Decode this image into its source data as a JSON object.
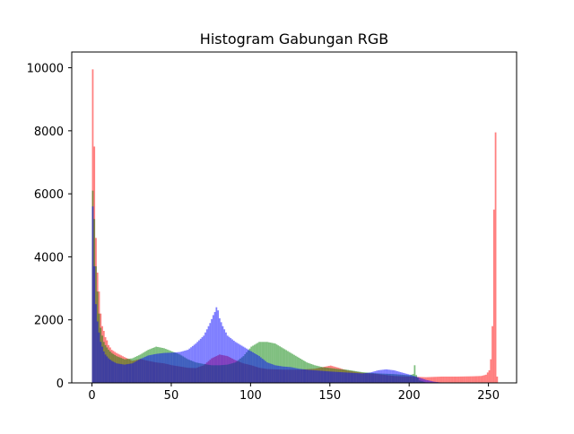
{
  "chart_data": {
    "type": "histogram",
    "title": "Histogram Gabungan RGB",
    "xlabel": "",
    "ylabel": "",
    "xlim": [
      -12.75,
      267.75
    ],
    "ylim": [
      0,
      10500
    ],
    "x_ticks": [
      0,
      50,
      100,
      150,
      200,
      250
    ],
    "y_ticks": [
      0,
      2000,
      4000,
      6000,
      8000,
      10000
    ],
    "bin_width": 1,
    "legend": "none",
    "grid": false,
    "series": [
      {
        "color": "#ff0000",
        "opacity": 0.5,
        "anchors": [
          [
            0,
            9950
          ],
          [
            1,
            7500
          ],
          [
            2,
            4600
          ],
          [
            3,
            3500
          ],
          [
            4,
            2900
          ],
          [
            5,
            2200
          ],
          [
            6,
            1800
          ],
          [
            7,
            1650
          ],
          [
            8,
            1450
          ],
          [
            9,
            1350
          ],
          [
            10,
            1200
          ],
          [
            12,
            1050
          ],
          [
            15,
            950
          ],
          [
            20,
            820
          ],
          [
            25,
            700
          ],
          [
            30,
            760
          ],
          [
            35,
            700
          ],
          [
            40,
            650
          ],
          [
            45,
            620
          ],
          [
            50,
            560
          ],
          [
            55,
            520
          ],
          [
            60,
            480
          ],
          [
            65,
            470
          ],
          [
            70,
            560
          ],
          [
            75,
            780
          ],
          [
            80,
            900
          ],
          [
            85,
            850
          ],
          [
            90,
            720
          ],
          [
            95,
            620
          ],
          [
            100,
            560
          ],
          [
            105,
            480
          ],
          [
            110,
            440
          ],
          [
            120,
            420
          ],
          [
            130,
            420
          ],
          [
            140,
            450
          ],
          [
            150,
            550
          ],
          [
            155,
            480
          ],
          [
            160,
            400
          ],
          [
            170,
            320
          ],
          [
            180,
            280
          ],
          [
            190,
            220
          ],
          [
            200,
            200
          ],
          [
            210,
            180
          ],
          [
            215,
            190
          ],
          [
            220,
            200
          ],
          [
            230,
            200
          ],
          [
            240,
            210
          ],
          [
            245,
            220
          ],
          [
            248,
            260
          ],
          [
            250,
            400
          ],
          [
            251,
            750
          ],
          [
            252,
            1800
          ],
          [
            253,
            5500
          ],
          [
            254,
            7950
          ],
          [
            255,
            200
          ]
        ]
      },
      {
        "color": "#008000",
        "opacity": 0.5,
        "anchors": [
          [
            0,
            6100
          ],
          [
            1,
            5200
          ],
          [
            2,
            3700
          ],
          [
            3,
            2900
          ],
          [
            4,
            2200
          ],
          [
            5,
            1750
          ],
          [
            6,
            1500
          ],
          [
            7,
            1300
          ],
          [
            8,
            1200
          ],
          [
            10,
            1050
          ],
          [
            12,
            950
          ],
          [
            15,
            850
          ],
          [
            20,
            750
          ],
          [
            25,
            780
          ],
          [
            30,
            900
          ],
          [
            35,
            1050
          ],
          [
            40,
            1150
          ],
          [
            45,
            1100
          ],
          [
            50,
            1000
          ],
          [
            55,
            900
          ],
          [
            60,
            750
          ],
          [
            65,
            650
          ],
          [
            70,
            600
          ],
          [
            75,
            560
          ],
          [
            80,
            560
          ],
          [
            85,
            580
          ],
          [
            90,
            650
          ],
          [
            95,
            850
          ],
          [
            100,
            1150
          ],
          [
            105,
            1300
          ],
          [
            110,
            1300
          ],
          [
            115,
            1250
          ],
          [
            120,
            1100
          ],
          [
            125,
            950
          ],
          [
            130,
            800
          ],
          [
            135,
            650
          ],
          [
            140,
            560
          ],
          [
            145,
            500
          ],
          [
            150,
            470
          ],
          [
            155,
            440
          ],
          [
            160,
            420
          ],
          [
            165,
            380
          ],
          [
            170,
            340
          ],
          [
            175,
            320
          ],
          [
            180,
            300
          ],
          [
            185,
            290
          ],
          [
            190,
            280
          ],
          [
            195,
            260
          ],
          [
            200,
            240
          ],
          [
            202,
            280
          ],
          [
            203,
            560
          ],
          [
            204,
            250
          ],
          [
            206,
            80
          ],
          [
            210,
            20
          ],
          [
            215,
            5
          ],
          [
            220,
            0
          ],
          [
            255,
            0
          ]
        ]
      },
      {
        "color": "#0000ff",
        "opacity": 0.5,
        "anchors": [
          [
            0,
            5600
          ],
          [
            1,
            3700
          ],
          [
            2,
            2500
          ],
          [
            3,
            1950
          ],
          [
            4,
            1600
          ],
          [
            5,
            1300
          ],
          [
            6,
            1150
          ],
          [
            7,
            1000
          ],
          [
            8,
            900
          ],
          [
            10,
            780
          ],
          [
            12,
            700
          ],
          [
            15,
            620
          ],
          [
            20,
            580
          ],
          [
            25,
            620
          ],
          [
            30,
            760
          ],
          [
            35,
            870
          ],
          [
            40,
            920
          ],
          [
            45,
            950
          ],
          [
            50,
            960
          ],
          [
            55,
            980
          ],
          [
            60,
            1050
          ],
          [
            65,
            1250
          ],
          [
            70,
            1500
          ],
          [
            72,
            1700
          ],
          [
            74,
            1900
          ],
          [
            76,
            2150
          ],
          [
            77,
            2250
          ],
          [
            78,
            2400
          ],
          [
            79,
            2300
          ],
          [
            80,
            2050
          ],
          [
            82,
            1800
          ],
          [
            85,
            1500
          ],
          [
            90,
            1300
          ],
          [
            95,
            1150
          ],
          [
            100,
            1000
          ],
          [
            105,
            850
          ],
          [
            110,
            650
          ],
          [
            115,
            560
          ],
          [
            120,
            520
          ],
          [
            125,
            500
          ],
          [
            130,
            450
          ],
          [
            135,
            420
          ],
          [
            140,
            400
          ],
          [
            145,
            380
          ],
          [
            150,
            360
          ],
          [
            160,
            330
          ],
          [
            170,
            300
          ],
          [
            175,
            330
          ],
          [
            180,
            400
          ],
          [
            185,
            430
          ],
          [
            190,
            400
          ],
          [
            195,
            330
          ],
          [
            200,
            260
          ],
          [
            205,
            180
          ],
          [
            210,
            100
          ],
          [
            215,
            40
          ],
          [
            220,
            10
          ],
          [
            225,
            0
          ],
          [
            255,
            0
          ]
        ]
      }
    ]
  }
}
